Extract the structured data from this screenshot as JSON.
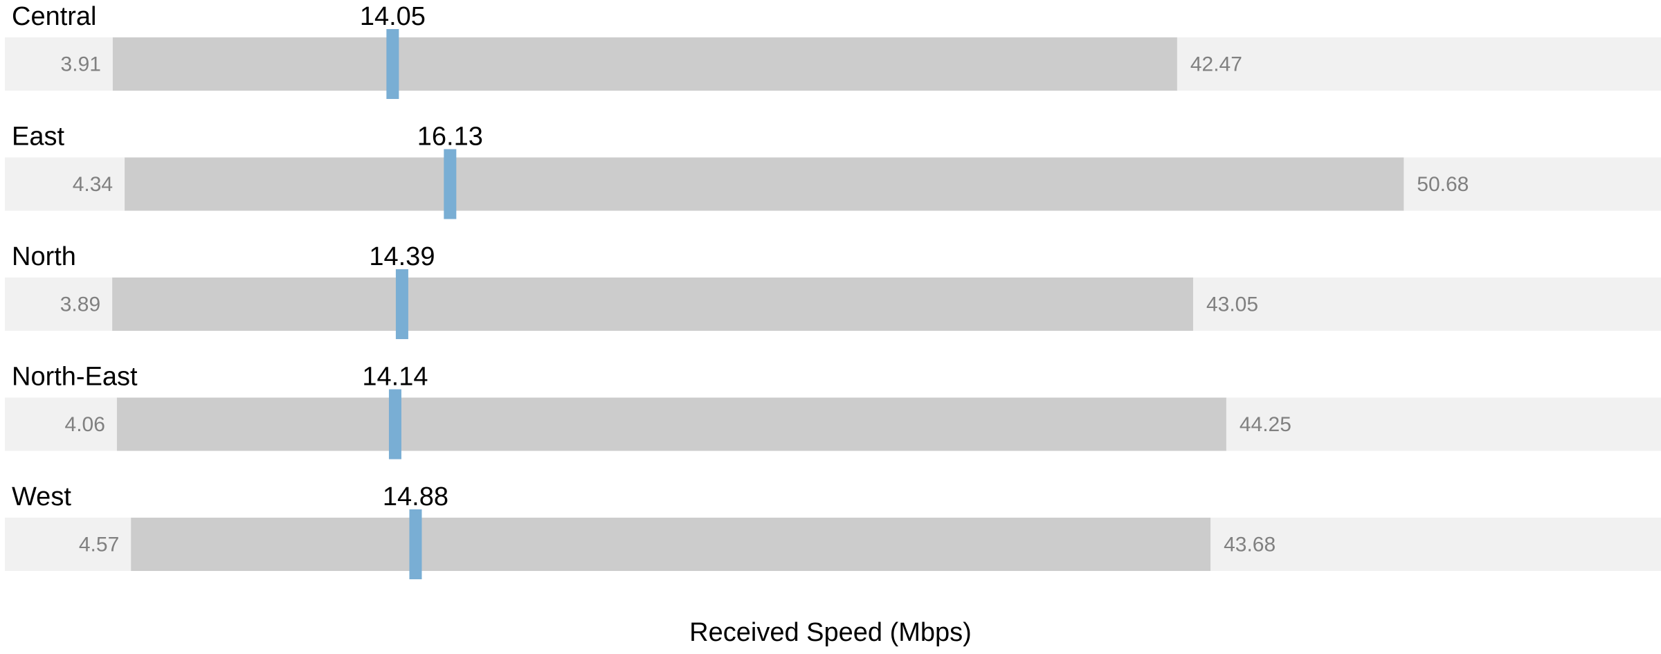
{
  "chart_data": {
    "type": "bar",
    "title": "",
    "xlabel": "Received Speed (Mbps)",
    "ylabel": "",
    "xlim": [
      0,
      60
    ],
    "grid": false,
    "legend": "none",
    "rows": [
      {
        "category": "Central",
        "min": 3.91,
        "max": 42.47,
        "median": 14.05,
        "min_label": "3.91",
        "max_label": "42.47",
        "median_label": "14.05"
      },
      {
        "category": "East",
        "min": 4.34,
        "max": 50.68,
        "median": 16.13,
        "min_label": "4.34",
        "max_label": "50.68",
        "median_label": "16.13"
      },
      {
        "category": "North",
        "min": 3.89,
        "max": 43.05,
        "median": 14.39,
        "min_label": "3.89",
        "max_label": "43.05",
        "median_label": "14.39"
      },
      {
        "category": "North-East",
        "min": 4.06,
        "max": 44.25,
        "median": 14.14,
        "min_label": "4.06",
        "max_label": "44.25",
        "median_label": "14.14"
      },
      {
        "category": "West",
        "min": 4.57,
        "max": 43.68,
        "median": 14.88,
        "min_label": "4.57",
        "max_label": "43.68",
        "median_label": "14.88"
      }
    ]
  },
  "colors": {
    "track": "#f1f1f1",
    "range": "#cccccc",
    "marker": "#79aed4",
    "category_text": "#000000",
    "range_value_text": "#808080",
    "marker_value_text": "#000000",
    "axis_title_text": "#000000"
  }
}
